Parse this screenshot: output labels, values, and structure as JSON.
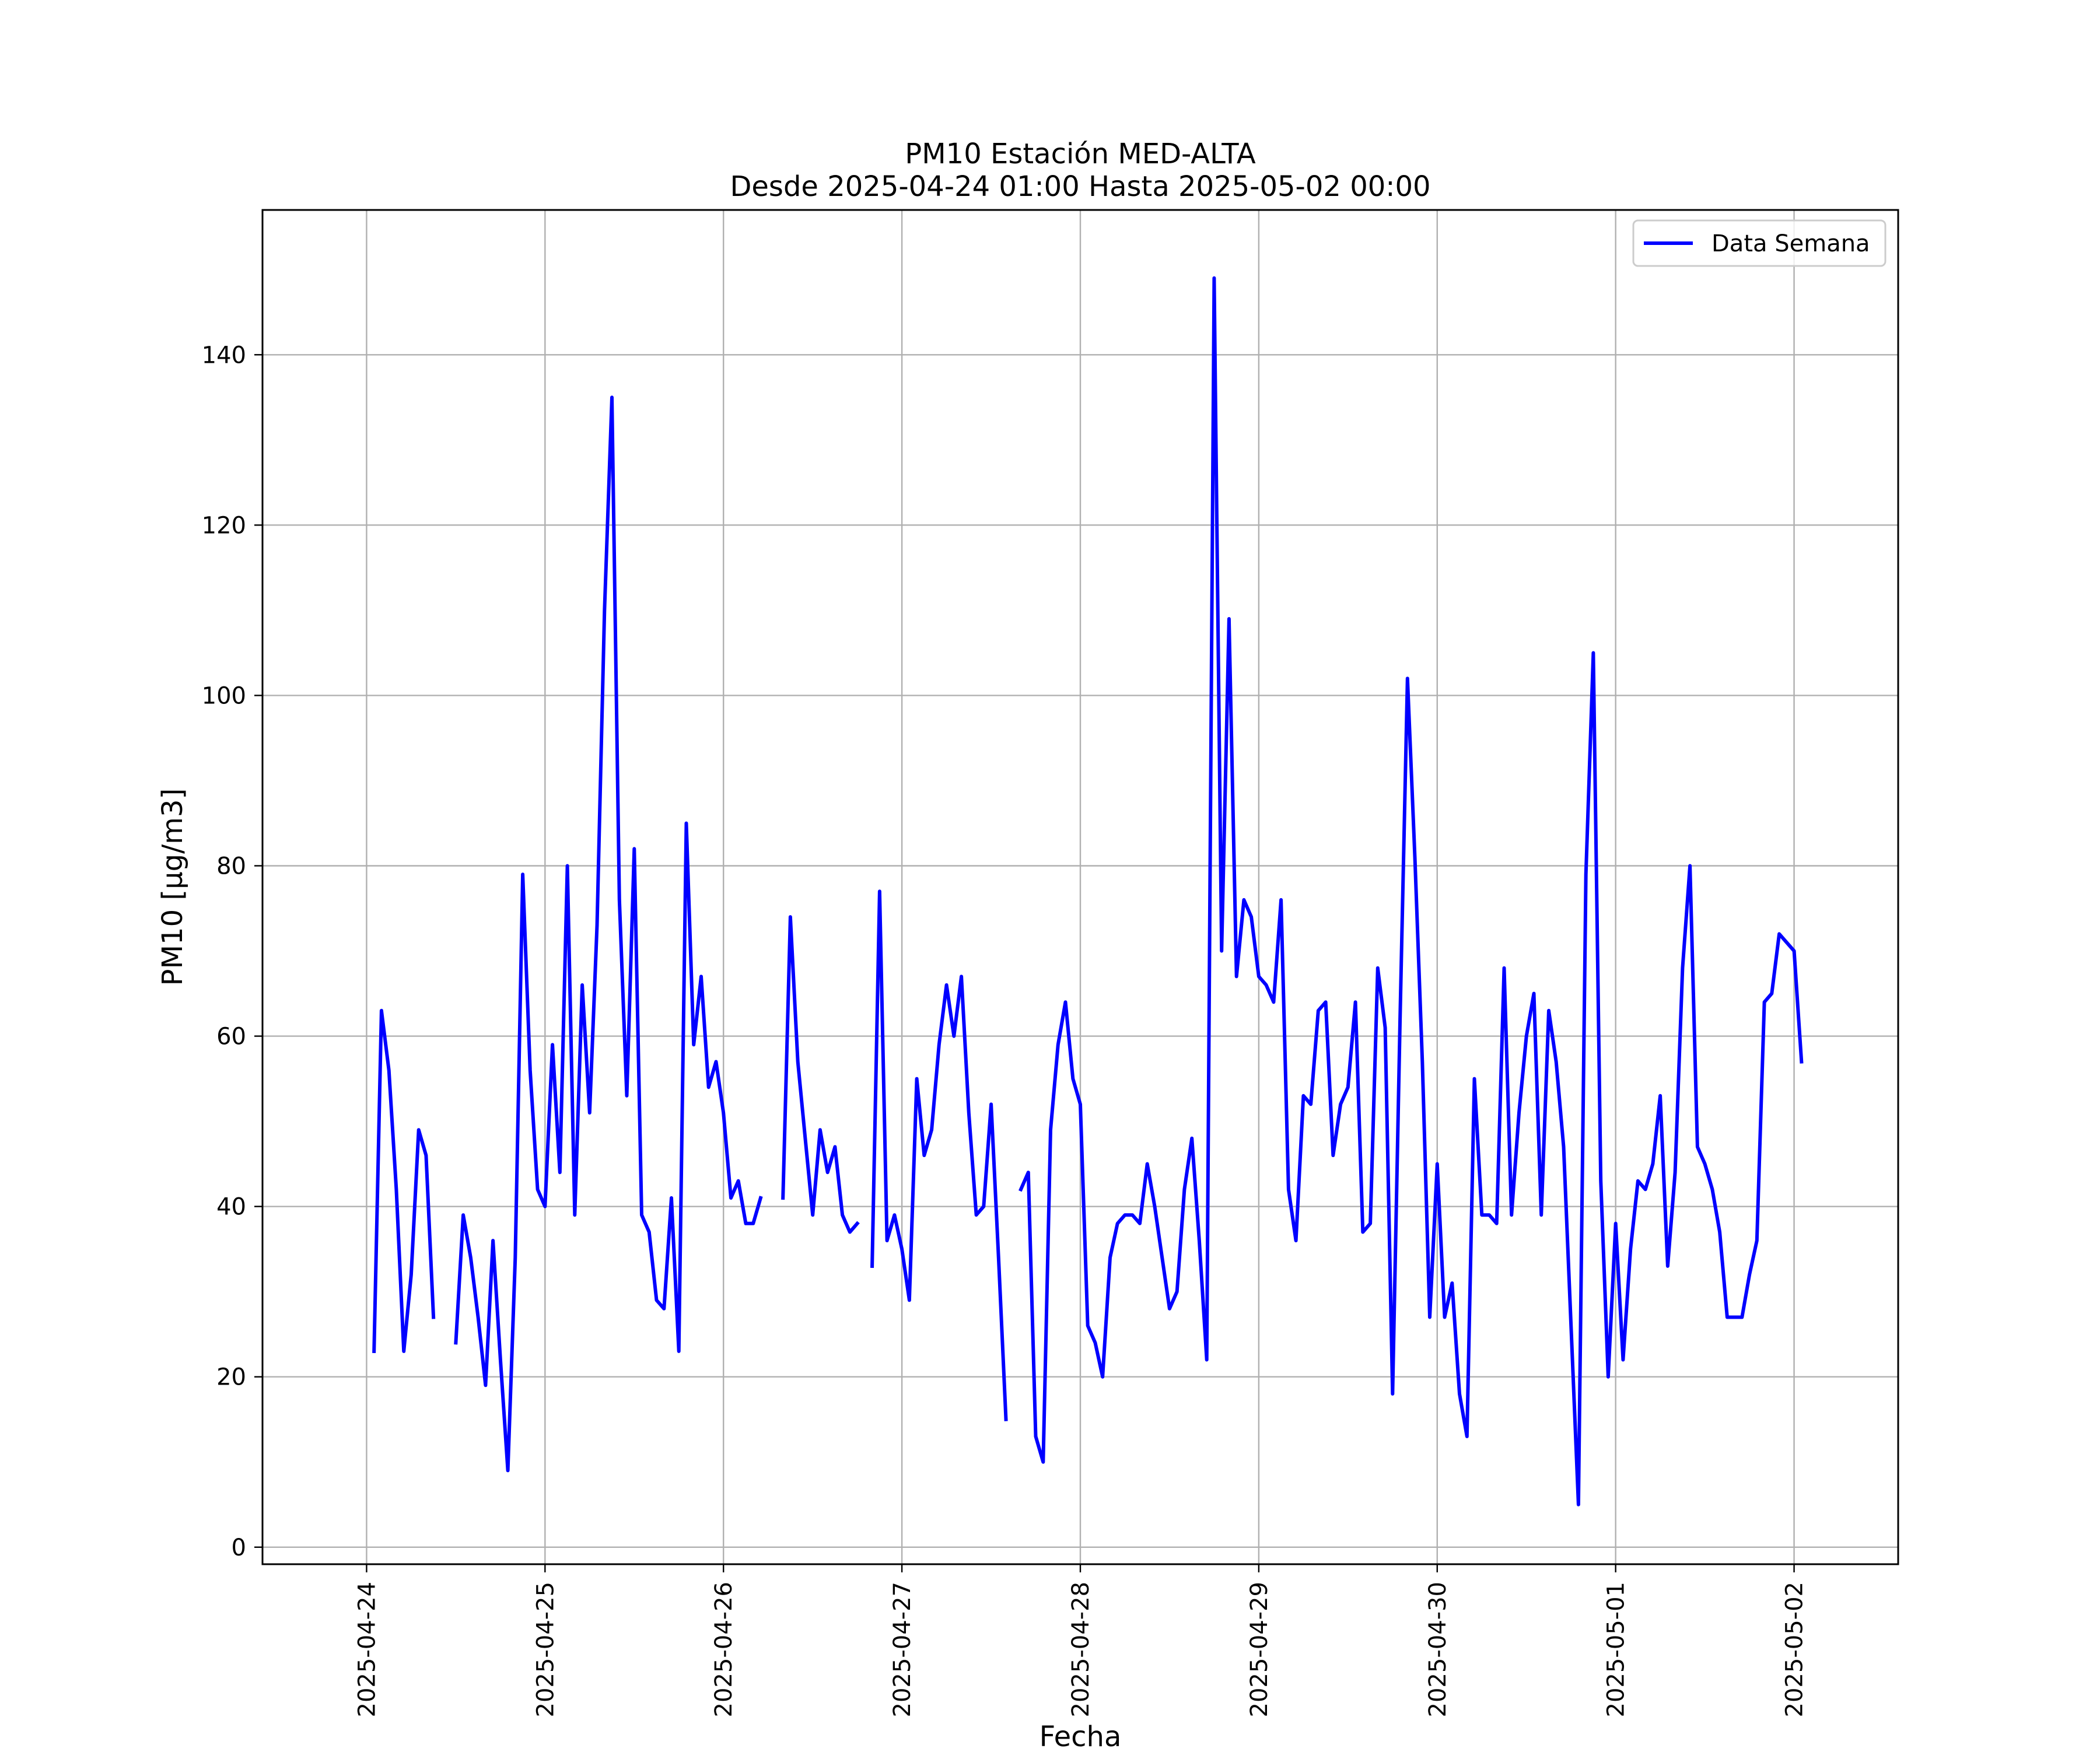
{
  "chart_data": {
    "type": "line",
    "title": "PM10 Estación MED-ALTA",
    "subtitle": "Desde 2025-04-24 01:00 Hasta 2025-05-02 00:00",
    "xlabel": "Fecha",
    "ylabel": "PM10 [μg/m3]",
    "x_ticks": [
      "2025-04-24",
      "2025-04-25",
      "2025-04-26",
      "2025-04-27",
      "2025-04-28",
      "2025-04-29",
      "2025-04-30",
      "2025-05-01",
      "2025-05-02"
    ],
    "y_ticks": [
      0,
      20,
      40,
      60,
      80,
      100,
      120,
      140
    ],
    "xlim": [
      "2025-04-23 10:00",
      "2025-05-02 14:00"
    ],
    "ylim": [
      -2,
      157
    ],
    "grid": true,
    "legend_position": "top-right",
    "series": [
      {
        "name": "Data Semana",
        "color": "#0000ff",
        "x_start": "2025-04-24 01:00",
        "x_step_hours": 1,
        "values": [
          23,
          63,
          56,
          42,
          23,
          32,
          49,
          46,
          27,
          null,
          null,
          24,
          39,
          34,
          27,
          19,
          36,
          22,
          9,
          34,
          79,
          56,
          42,
          40,
          59,
          44,
          80,
          39,
          66,
          51,
          73,
          110,
          135,
          76,
          53,
          82,
          39,
          37,
          29,
          28,
          41,
          23,
          85,
          59,
          67,
          54,
          57,
          51,
          41,
          43,
          38,
          38,
          41,
          null,
          null,
          41,
          74,
          57,
          48,
          39,
          49,
          44,
          47,
          39,
          37,
          38,
          null,
          33,
          77,
          36,
          39,
          35,
          29,
          55,
          46,
          49,
          59,
          66,
          60,
          67,
          51,
          39,
          40,
          52,
          34,
          15,
          null,
          42,
          44,
          13,
          10,
          49,
          59,
          64,
          55,
          52,
          26,
          24,
          20,
          34,
          38,
          39,
          39,
          38,
          45,
          40,
          34,
          28,
          30,
          42,
          48,
          36,
          22,
          149,
          70,
          109,
          67,
          76,
          74,
          67,
          66,
          64,
          76,
          42,
          36,
          53,
          52,
          63,
          64,
          46,
          52,
          54,
          64,
          37,
          38,
          68,
          61,
          18,
          62,
          102,
          81,
          57,
          27,
          45,
          27,
          31,
          18,
          13,
          55,
          39,
          39,
          38,
          68,
          39,
          51,
          60,
          65,
          39,
          63,
          57,
          47,
          26,
          5,
          79,
          105,
          43,
          20,
          38,
          22,
          35,
          43,
          42,
          45,
          53,
          33,
          44,
          68,
          80,
          47,
          45,
          42,
          37,
          27,
          27,
          27,
          32,
          36,
          64,
          65,
          72,
          71,
          70,
          57
        ]
      }
    ]
  }
}
